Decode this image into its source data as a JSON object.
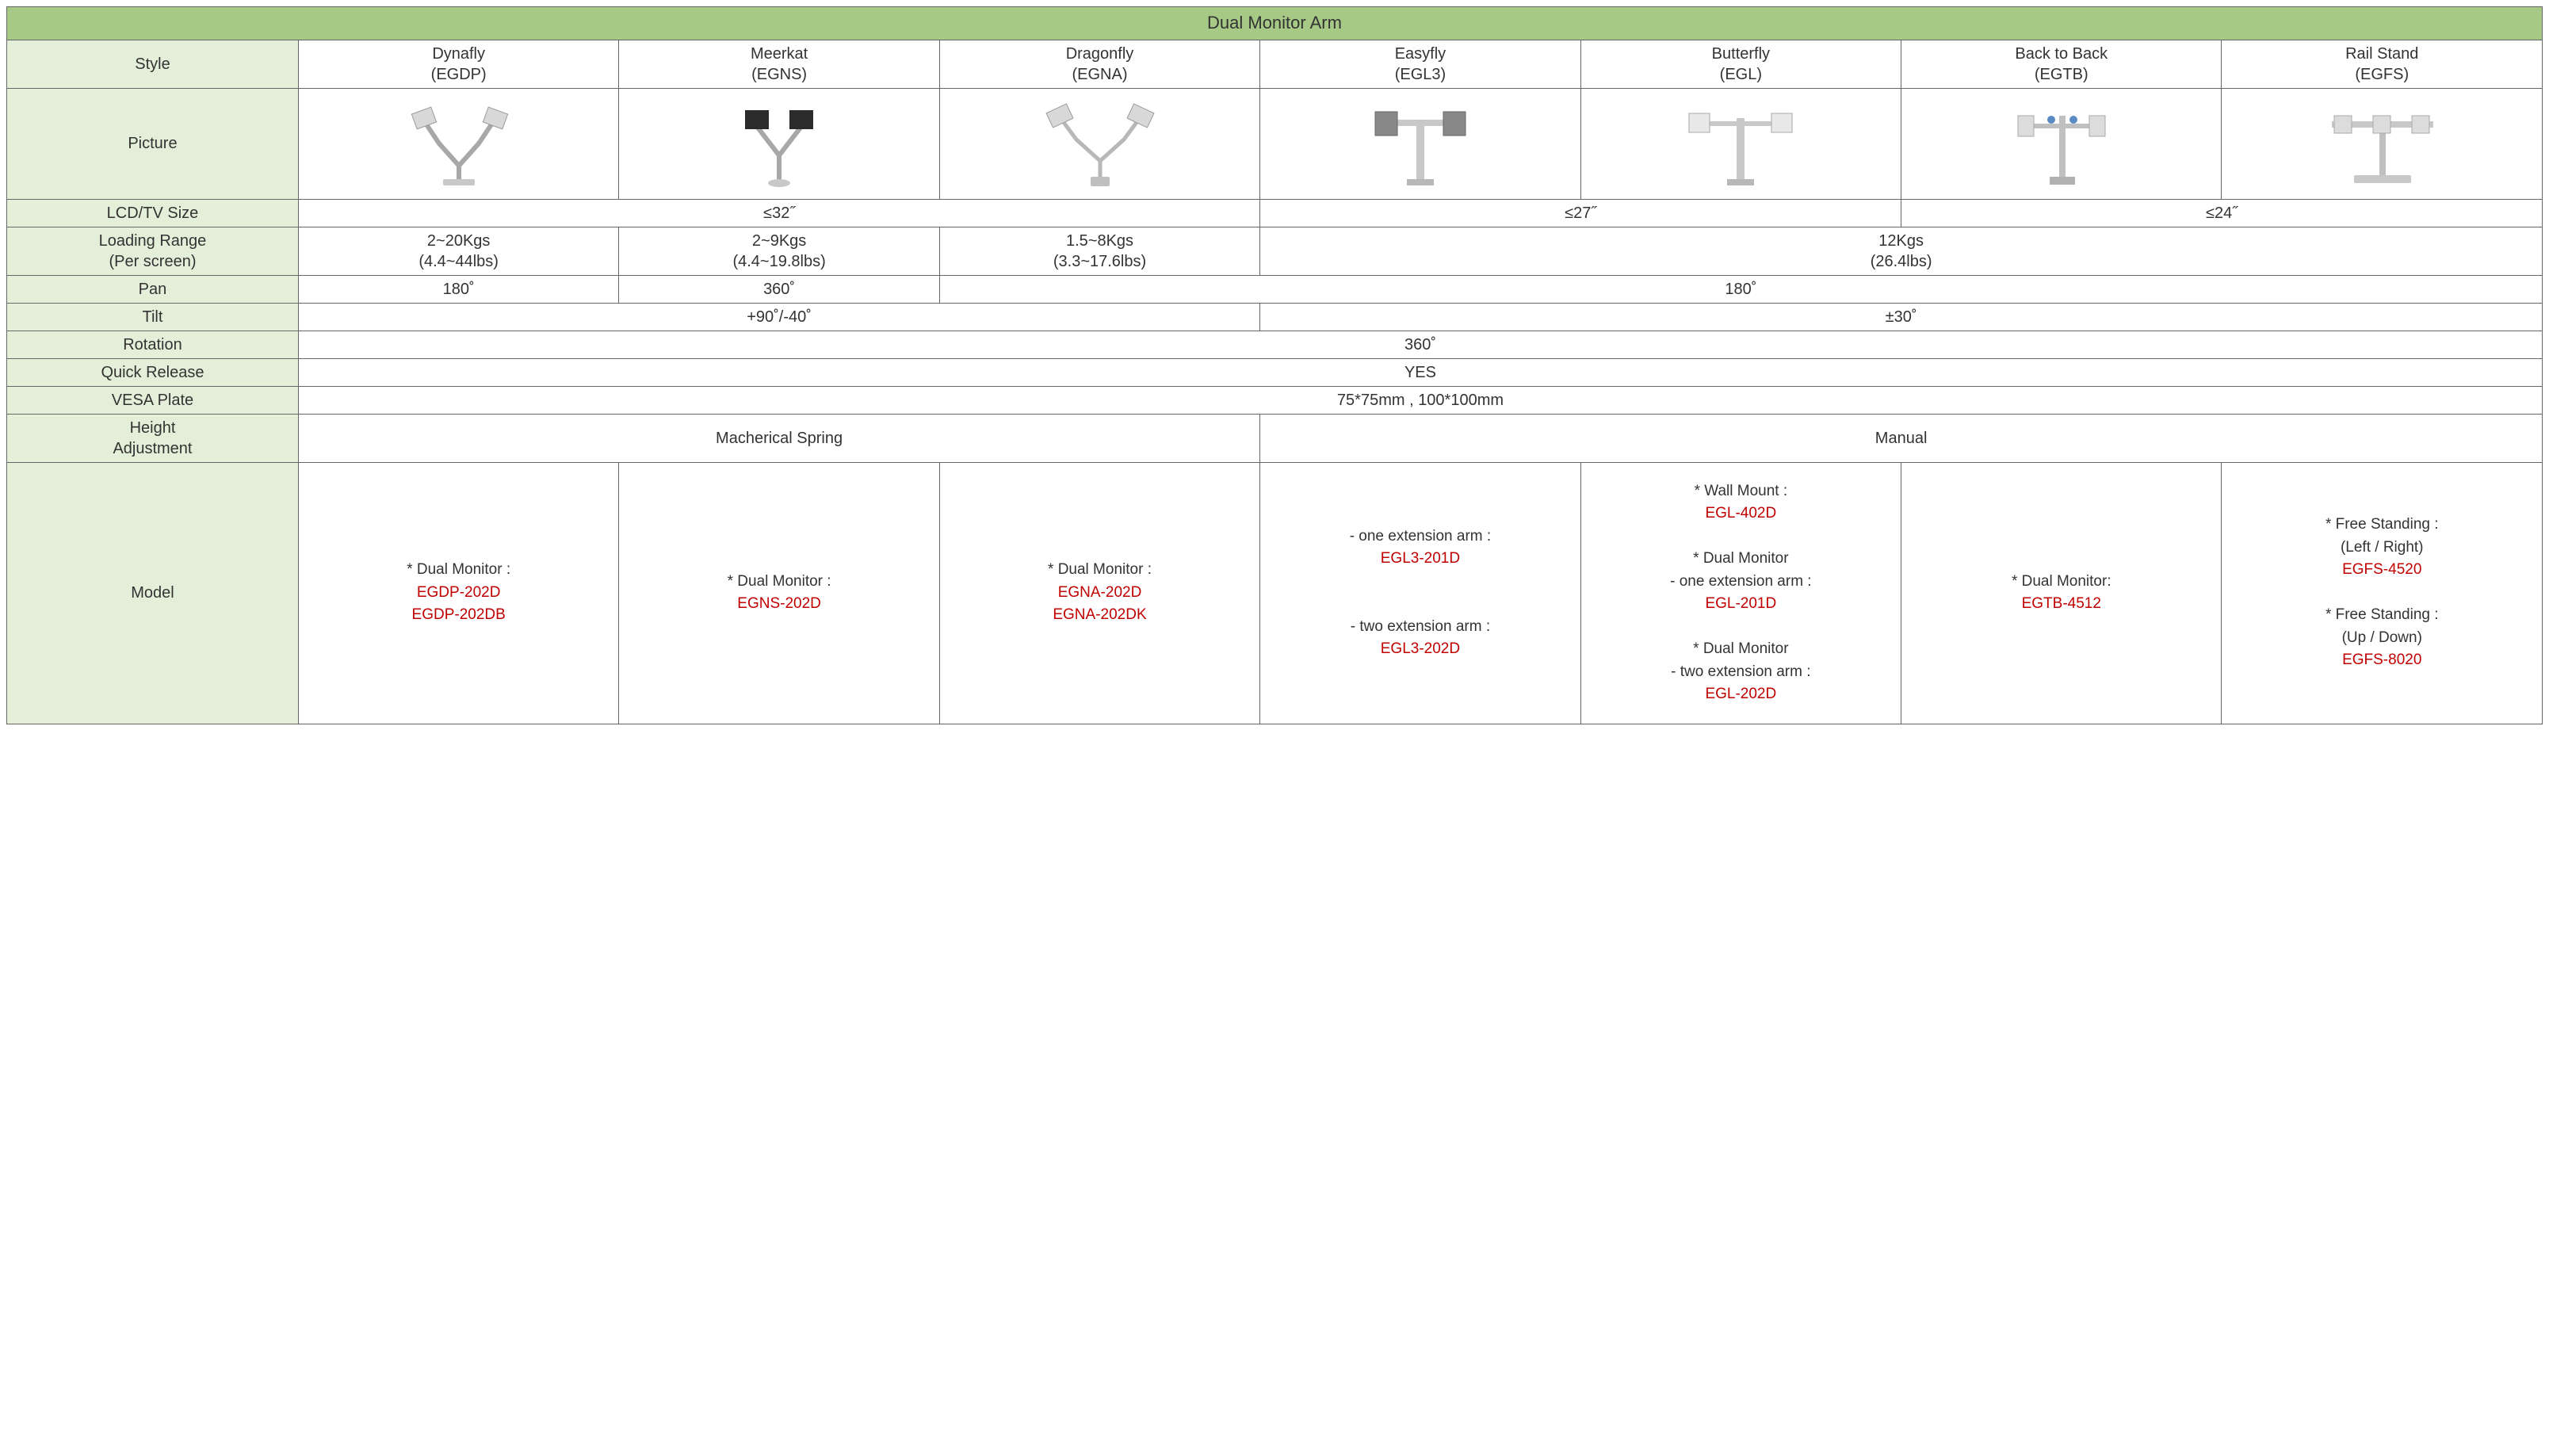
{
  "colors": {
    "title_bg": "#a6c986",
    "label_bg": "#e4efda",
    "border": "#666666",
    "text": "#333333",
    "model_code": "#c00000"
  },
  "title": "Dual Monitor Arm",
  "row_labels": {
    "style": "Style",
    "picture": "Picture",
    "lcd": "LCD/TV Size",
    "loading": "Loading Range\n(Per screen)",
    "pan": "Pan",
    "tilt": "Tilt",
    "rotation": "Rotation",
    "quick": "Quick Release",
    "vesa": "VESA Plate",
    "height": "Height\nAdjustment",
    "model": "Model"
  },
  "styles": [
    {
      "name": "Dynafly",
      "code": "(EGDP)"
    },
    {
      "name": "Meerkat",
      "code": "(EGNS)"
    },
    {
      "name": "Dragonfly",
      "code": "(EGNA)"
    },
    {
      "name": "Easyfly",
      "code": "(EGL3)"
    },
    {
      "name": "Butterfly",
      "code": "(EGL)"
    },
    {
      "name": "Back to Back",
      "code": "(EGTB)"
    },
    {
      "name": "Rail Stand",
      "code": "(EGFS)"
    }
  ],
  "lcd_groups": [
    {
      "span": 3,
      "value": "≤32˝"
    },
    {
      "span": 2,
      "value": "≤27˝"
    },
    {
      "span": 2,
      "value": "≤24˝"
    }
  ],
  "loading": {
    "individual": [
      {
        "kg": "2~20Kgs",
        "lb": "(4.4~44lbs)"
      },
      {
        "kg": "2~9Kgs",
        "lb": "(4.4~19.8lbs)"
      },
      {
        "kg": "1.5~8Kgs",
        "lb": "(3.3~17.6lbs)"
      }
    ],
    "group": {
      "span": 4,
      "kg": "12Kgs",
      "lb": "(26.4lbs)"
    }
  },
  "pan": [
    {
      "span": 1,
      "value": "180˚"
    },
    {
      "span": 1,
      "value": "360˚"
    },
    {
      "span": 5,
      "value": "180˚"
    }
  ],
  "tilt": [
    {
      "span": 3,
      "value": "+90˚/-40˚"
    },
    {
      "span": 4,
      "value": "±30˚"
    }
  ],
  "rotation": {
    "span": 7,
    "value": "360˚"
  },
  "quick": {
    "span": 7,
    "value": "YES"
  },
  "vesa": {
    "span": 7,
    "value": "75*75mm , 100*100mm"
  },
  "height_adj": [
    {
      "span": 3,
      "value": "Macherical Spring"
    },
    {
      "span": 4,
      "value": "Manual"
    }
  ],
  "models": [
    {
      "lines": [
        {
          "t": "* Dual Monitor :",
          "c": "black"
        },
        {
          "t": "EGDP-202D",
          "c": "red"
        },
        {
          "t": "EGDP-202DB",
          "c": "red"
        }
      ]
    },
    {
      "lines": [
        {
          "t": "* Dual Monitor :",
          "c": "black"
        },
        {
          "t": "EGNS-202D",
          "c": "red"
        }
      ]
    },
    {
      "lines": [
        {
          "t": "* Dual Monitor :",
          "c": "black"
        },
        {
          "t": "EGNA-202D",
          "c": "red"
        },
        {
          "t": "EGNA-202DK",
          "c": "red"
        }
      ]
    },
    {
      "lines": [
        {
          "t": "- one extension arm :",
          "c": "black"
        },
        {
          "t": "EGL3-201D",
          "c": "red"
        },
        {
          "t": "",
          "c": "black"
        },
        {
          "t": "",
          "c": "black"
        },
        {
          "t": "- two extension arm :",
          "c": "black"
        },
        {
          "t": "EGL3-202D",
          "c": "red"
        }
      ]
    },
    {
      "lines": [
        {
          "t": "* Wall Mount :",
          "c": "black"
        },
        {
          "t": "EGL-402D",
          "c": "red"
        },
        {
          "t": "",
          "c": "black"
        },
        {
          "t": "* Dual Monitor",
          "c": "black"
        },
        {
          "t": "- one extension arm :",
          "c": "black"
        },
        {
          "t": "EGL-201D",
          "c": "red"
        },
        {
          "t": "",
          "c": "black"
        },
        {
          "t": "* Dual Monitor",
          "c": "black"
        },
        {
          "t": "- two extension arm :",
          "c": "black"
        },
        {
          "t": "EGL-202D",
          "c": "red"
        }
      ]
    },
    {
      "lines": [
        {
          "t": "* Dual Monitor:",
          "c": "black"
        },
        {
          "t": "EGTB-4512",
          "c": "red"
        }
      ]
    },
    {
      "lines": [
        {
          "t": "* Free Standing :",
          "c": "black"
        },
        {
          "t": "(Left / Right)",
          "c": "black"
        },
        {
          "t": "EGFS-4520",
          "c": "red"
        },
        {
          "t": "",
          "c": "black"
        },
        {
          "t": "* Free Standing :",
          "c": "black"
        },
        {
          "t": "(Up / Down)",
          "c": "black"
        },
        {
          "t": "EGFS-8020",
          "c": "red"
        }
      ]
    }
  ],
  "picture_svg": {
    "stroke": "#b0b0b0",
    "dark": "#404040",
    "width": 150,
    "height": 120
  }
}
